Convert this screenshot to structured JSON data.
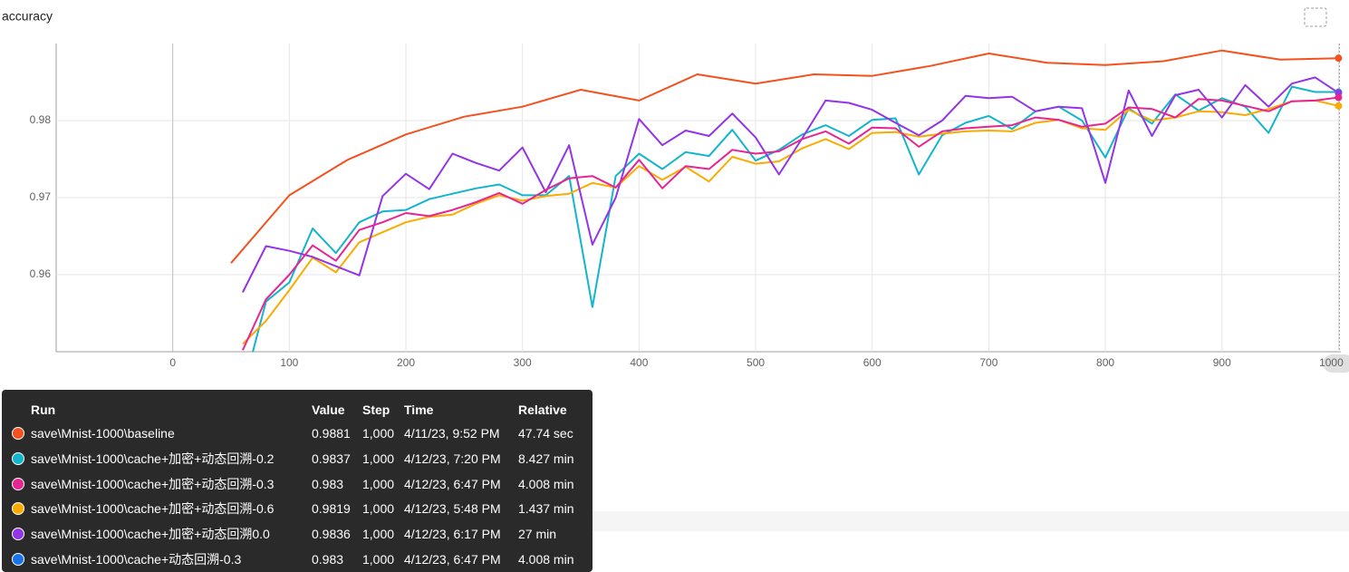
{
  "chart_data": {
    "type": "line",
    "title": "accuracy",
    "xlim": [
      -100,
      1002
    ],
    "ylim": [
      0.95,
      0.99
    ],
    "xticks": [
      0,
      100,
      200,
      300,
      400,
      500,
      600,
      700,
      800,
      900,
      1000
    ],
    "yticks": [
      0.96,
      0.97,
      0.98
    ],
    "grid": true,
    "series": [
      {
        "name": "save\\Mnist-1000\\baseline",
        "color": "#f4511e",
        "x": [
          50,
          100,
          150,
          200,
          250,
          300,
          350,
          400,
          450,
          500,
          550,
          600,
          650,
          700,
          750,
          800,
          850,
          900,
          950,
          1000
        ],
        "values": [
          0.9615,
          0.9703,
          0.9749,
          0.9782,
          0.9805,
          0.9818,
          0.984,
          0.9826,
          0.986,
          0.9848,
          0.986,
          0.9858,
          0.9871,
          0.9887,
          0.9875,
          0.9872,
          0.9877,
          0.9891,
          0.9879,
          0.9881
        ]
      },
      {
        "name": "save\\Mnist-1000\\cache+加密+动态回溯-0.2",
        "color": "#12b5cb",
        "x": [
          60,
          80,
          100,
          120,
          140,
          160,
          180,
          200,
          220,
          240,
          260,
          280,
          300,
          320,
          340,
          360,
          380,
          400,
          420,
          440,
          460,
          480,
          500,
          520,
          540,
          560,
          580,
          600,
          620,
          640,
          660,
          680,
          700,
          720,
          740,
          760,
          780,
          800,
          820,
          840,
          860,
          880,
          900,
          920,
          940,
          960,
          980,
          1000
        ],
        "values": [
          0.945,
          0.9565,
          0.959,
          0.966,
          0.9628,
          0.9668,
          0.9682,
          0.9684,
          0.9698,
          0.9705,
          0.9712,
          0.9717,
          0.9703,
          0.9703,
          0.9728,
          0.9558,
          0.9728,
          0.9757,
          0.9737,
          0.9759,
          0.9754,
          0.9788,
          0.9748,
          0.9762,
          0.9782,
          0.9794,
          0.978,
          0.9801,
          0.9803,
          0.973,
          0.9781,
          0.9797,
          0.9806,
          0.9789,
          0.9812,
          0.9818,
          0.98,
          0.9752,
          0.9816,
          0.9796,
          0.9834,
          0.9813,
          0.9829,
          0.9818,
          0.9784,
          0.9844,
          0.9837,
          0.9837
        ]
      },
      {
        "name": "save\\Mnist-1000\\cache+加密+动态回溯-0.6",
        "color": "#f9ab00",
        "x": [
          60,
          80,
          100,
          120,
          140,
          160,
          180,
          200,
          220,
          240,
          260,
          280,
          300,
          320,
          340,
          360,
          380,
          400,
          420,
          440,
          460,
          480,
          500,
          520,
          540,
          560,
          580,
          600,
          620,
          640,
          660,
          680,
          700,
          720,
          740,
          760,
          780,
          800,
          820,
          840,
          860,
          880,
          900,
          920,
          940,
          960,
          980,
          1000
        ],
        "values": [
          0.951,
          0.954,
          0.958,
          0.9622,
          0.9603,
          0.9642,
          0.9655,
          0.9668,
          0.9675,
          0.9678,
          0.9692,
          0.9703,
          0.9696,
          0.9702,
          0.9705,
          0.9719,
          0.9713,
          0.9741,
          0.9723,
          0.974,
          0.9721,
          0.9753,
          0.9744,
          0.9747,
          0.9764,
          0.9776,
          0.9763,
          0.9784,
          0.9785,
          0.9779,
          0.9783,
          0.9786,
          0.9787,
          0.9786,
          0.9797,
          0.9801,
          0.979,
          0.9788,
          0.9814,
          0.98,
          0.9804,
          0.9812,
          0.9811,
          0.9807,
          0.9815,
          0.9825,
          0.9826,
          0.9819
        ]
      },
      {
        "name": "save\\Mnist-1000\\cache+加密+动态回溯0.0",
        "color": "#9334e6",
        "x": [
          60,
          80,
          100,
          120,
          140,
          160,
          180,
          200,
          220,
          240,
          260,
          280,
          300,
          320,
          340,
          360,
          380,
          400,
          420,
          440,
          460,
          480,
          500,
          520,
          540,
          560,
          580,
          600,
          620,
          640,
          660,
          680,
          700,
          720,
          740,
          760,
          780,
          800,
          820,
          840,
          860,
          880,
          900,
          920,
          940,
          960,
          980,
          1000
        ],
        "values": [
          0.9577,
          0.9637,
          0.9631,
          0.9623,
          0.9611,
          0.9599,
          0.9702,
          0.9731,
          0.9711,
          0.9757,
          0.9745,
          0.9735,
          0.9765,
          0.9707,
          0.9768,
          0.9639,
          0.97,
          0.9802,
          0.9768,
          0.9787,
          0.978,
          0.9809,
          0.9778,
          0.973,
          0.9777,
          0.9826,
          0.9823,
          0.9814,
          0.9797,
          0.9781,
          0.98,
          0.9832,
          0.9829,
          0.9831,
          0.9812,
          0.9818,
          0.9816,
          0.9719,
          0.9839,
          0.978,
          0.9833,
          0.984,
          0.9804,
          0.9846,
          0.9818,
          0.9848,
          0.9856,
          0.9836
        ]
      },
      {
        "name": "save\\Mnist-1000\\cache+加密+动态回溯-0.3",
        "color": "#e52592",
        "x": [
          60,
          80,
          100,
          120,
          140,
          160,
          180,
          200,
          220,
          240,
          260,
          280,
          300,
          320,
          340,
          360,
          380,
          400,
          420,
          440,
          460,
          480,
          500,
          520,
          540,
          560,
          580,
          600,
          620,
          640,
          660,
          680,
          700,
          720,
          740,
          760,
          780,
          800,
          820,
          840,
          860,
          880,
          900,
          920,
          940,
          960,
          980,
          1000
        ],
        "values": [
          0.9502,
          0.9568,
          0.96,
          0.9638,
          0.9618,
          0.9658,
          0.9668,
          0.968,
          0.9676,
          0.9684,
          0.9694,
          0.9706,
          0.9692,
          0.971,
          0.9725,
          0.9728,
          0.9713,
          0.9749,
          0.9712,
          0.9741,
          0.9737,
          0.9762,
          0.9757,
          0.976,
          0.9776,
          0.9786,
          0.977,
          0.9791,
          0.979,
          0.9766,
          0.9786,
          0.979,
          0.9792,
          0.9794,
          0.9804,
          0.9801,
          0.9792,
          0.9796,
          0.9817,
          0.9815,
          0.9804,
          0.9828,
          0.9826,
          0.9819,
          0.9812,
          0.9825,
          0.9826,
          0.983
        ]
      }
    ]
  },
  "tooltip": {
    "columns": [
      "Run",
      "Value",
      "Step",
      "Time",
      "Relative"
    ],
    "rows": [
      {
        "color": "#f4511e",
        "cells": [
          "save\\Mnist-1000\\baseline",
          "0.9881",
          "1,000",
          "4/11/23, 9:52 PM",
          "47.74 sec"
        ]
      },
      {
        "color": "#12b5cb",
        "cells": [
          "save\\Mnist-1000\\cache+加密+动态回溯-0.2",
          "0.9837",
          "1,000",
          "4/12/23, 7:20 PM",
          "8.427 min"
        ]
      },
      {
        "color": "#e52592",
        "cells": [
          "save\\Mnist-1000\\cache+加密+动态回溯-0.3",
          "0.983",
          "1,000",
          "4/12/23, 6:47 PM",
          "4.008 min"
        ]
      },
      {
        "color": "#f9ab00",
        "cells": [
          "save\\Mnist-1000\\cache+加密+动态回溯-0.6",
          "0.9819",
          "1,000",
          "4/12/23, 5:48 PM",
          "1.437 min"
        ]
      },
      {
        "color": "#9334e6",
        "cells": [
          "save\\Mnist-1000\\cache+加密+动态回溯0.0",
          "0.9836",
          "1,000",
          "4/12/23, 6:17 PM",
          "27 min"
        ]
      },
      {
        "color": "#1a73e8",
        "cells": [
          "save\\Mnist-1000\\cache+动态回溯-0.3",
          "0.983",
          "1,000",
          "4/12/23, 6:47 PM",
          "4.008 min"
        ]
      }
    ]
  }
}
